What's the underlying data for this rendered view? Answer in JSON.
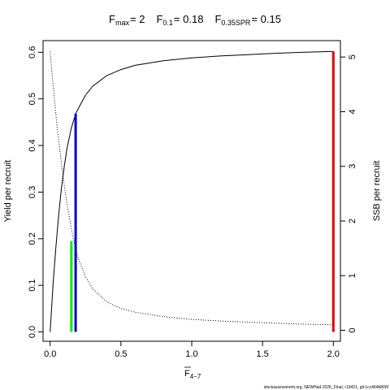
{
  "chart_data": {
    "type": "line",
    "title": {
      "fmax": {
        "main": "F",
        "sub": "max",
        "rest": "= 2"
      },
      "f01": {
        "main": "F",
        "sub": "0.1",
        "rest": "= 0.18"
      },
      "f035": {
        "main": "F",
        "sub": "0.35SPR",
        "rest": "= 0.15"
      }
    },
    "xlabel": {
      "main": "F",
      "sub": "4−7",
      "overbar": true
    },
    "ylabel_left": "Yield per recruit",
    "ylabel_right": "SSB per recruit",
    "xlim": [
      -0.05,
      2.05
    ],
    "ylim_left": [
      -0.02,
      0.625
    ],
    "ylim_right": [
      -0.2,
      5.3
    ],
    "xticks": [
      "0.0",
      "0.5",
      "1.0",
      "1.5",
      "2.0"
    ],
    "yticks_left": [
      "0.0",
      "0.1",
      "0.2",
      "0.3",
      "0.4",
      "0.5",
      "0.6"
    ],
    "yticks_right": [
      "0",
      "1",
      "2",
      "3",
      "4",
      "5"
    ],
    "series": [
      {
        "axis": "left",
        "style": "solid",
        "x": [
          0,
          0.01,
          0.02,
          0.04,
          0.06,
          0.08,
          0.1,
          0.12,
          0.15,
          0.18,
          0.2,
          0.25,
          0.3,
          0.4,
          0.5,
          0.6,
          0.8,
          1.0,
          1.2,
          1.4,
          1.6,
          1.8,
          2.0
        ],
        "y": [
          0.0,
          0.05,
          0.1,
          0.18,
          0.25,
          0.31,
          0.355,
          0.395,
          0.438,
          0.468,
          0.48,
          0.508,
          0.527,
          0.55,
          0.563,
          0.572,
          0.582,
          0.588,
          0.592,
          0.595,
          0.598,
          0.6,
          0.602
        ]
      },
      {
        "axis": "right",
        "style": "dotted",
        "x": [
          0,
          0.02,
          0.05,
          0.08,
          0.1,
          0.12,
          0.15,
          0.18,
          0.2,
          0.25,
          0.3,
          0.4,
          0.5,
          0.6,
          0.8,
          1.0,
          1.2,
          1.4,
          1.6,
          1.8,
          2.0
        ],
        "y": [
          5.1,
          4.5,
          3.7,
          3.05,
          2.65,
          2.3,
          1.85,
          1.48,
          1.3,
          0.98,
          0.76,
          0.52,
          0.4,
          0.33,
          0.25,
          0.2,
          0.17,
          0.15,
          0.13,
          0.11,
          0.1
        ]
      }
    ],
    "reference_lines": [
      {
        "name": "F0.35SPR",
        "x": 0.15,
        "y_left": 0.195,
        "color": "#00ee00"
      },
      {
        "name": "F0.1",
        "x": 0.18,
        "y_left": 0.468,
        "color": "#0000cc"
      },
      {
        "name": "Fmax",
        "x": 2.0,
        "y_left": 0.602,
        "color": "#dd0000"
      }
    ],
    "grid": false,
    "legend": "none"
  },
  "credit": "stockassessment.org, NEWHad-2025_Final, r19421, git:1cc464b806f"
}
